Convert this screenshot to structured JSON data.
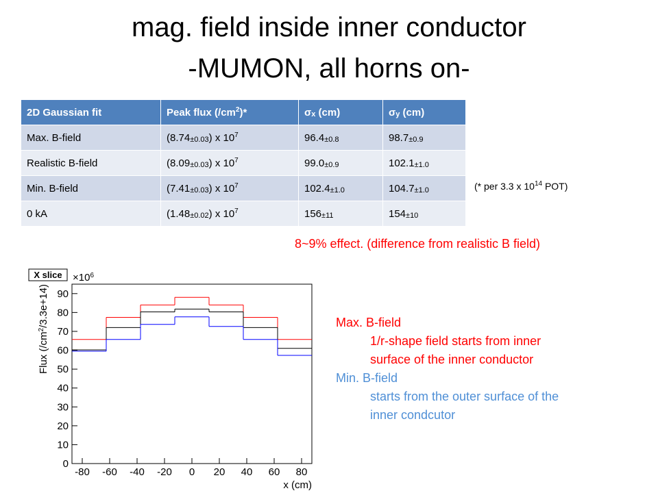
{
  "title": [
    "mag. field inside inner conductor",
    "-MUMON, all horns on-"
  ],
  "table": {
    "header": [
      "2D Gaussian  fit",
      [
        "Peak flux (/cm",
        {
          "sup": "2"
        },
        ")*"
      ],
      [
        "σ",
        {
          "sub": "x"
        },
        " (cm)"
      ],
      [
        "σ",
        {
          "sub": "y"
        },
        " (cm)"
      ]
    ],
    "rows": [
      [
        "Max. B-field",
        [
          "(8.74",
          {
            "sub": "±0.03"
          },
          ") x 10",
          {
            "sup": "7"
          }
        ],
        [
          "96.4",
          {
            "sub": "±0.8"
          }
        ],
        [
          "98.7",
          {
            "sub": "±0.9"
          }
        ]
      ],
      [
        "Realistic B-field",
        [
          "(8.09",
          {
            "sub": "±0.03"
          },
          ") x 10",
          {
            "sup": "7"
          }
        ],
        [
          "99.0",
          {
            "sub": "±0.9"
          }
        ],
        [
          "102.1",
          {
            "sub": "±1.0"
          }
        ]
      ],
      [
        "Min. B-field",
        [
          "(7.41",
          {
            "sub": "±0.03"
          },
          ") x 10",
          {
            "sup": "7"
          }
        ],
        [
          "102.4",
          {
            "sub": "±1.0"
          }
        ],
        [
          "104.7",
          {
            "sub": "±1.0"
          }
        ]
      ],
      [
        "0 kA",
        [
          "(1.48",
          {
            "sub": "±0.02"
          },
          ") x 10",
          {
            "sup": "7"
          }
        ],
        [
          "156",
          {
            "sub": "±11"
          }
        ],
        [
          "154",
          {
            "sub": "±10"
          }
        ]
      ]
    ]
  },
  "note": [
    "(* per 3.3 x 10",
    {
      "sup": "14"
    },
    " POT)"
  ],
  "effect": "8~9% effect. (difference from realistic B field)",
  "chart_data": {
    "type": "histogram",
    "panel_label": "X slice",
    "y_multiplier": [
      "×10",
      {
        "sup": "6"
      }
    ],
    "xlabel": "x (cm)",
    "ylabel": [
      "Flux (/cm",
      {
        "sup": "2"
      },
      "/3.3e+14)"
    ],
    "bins": [
      -87.5,
      -62.5,
      -37.5,
      -12.5,
      12.5,
      37.5,
      62.5,
      87.5
    ],
    "series": [
      {
        "color": "#ff0000",
        "values": [
          65.7,
          77.4,
          84,
          88,
          84,
          77.4,
          65.7
        ]
      },
      {
        "color": "#000000",
        "values": [
          60.2,
          72,
          80.3,
          81.8,
          80.3,
          72,
          61
        ]
      },
      {
        "color": "#0000ff",
        "values": [
          59.5,
          65.7,
          73.7,
          77.7,
          72.6,
          65.7,
          57.3
        ]
      }
    ],
    "xlim": [
      -87.5,
      87.5
    ],
    "ylim": [
      0,
      95
    ],
    "xticks": [
      -80,
      -60,
      -40,
      -20,
      0,
      20,
      40,
      60,
      80
    ],
    "yticks": [
      0,
      10,
      20,
      30,
      40,
      50,
      60,
      70,
      80,
      90
    ]
  },
  "annotations": {
    "max": {
      "label": "Max. B-field",
      "lines": [
        "1/r-shape field starts from inner",
        "surface of the inner conductor"
      ],
      "color": "#ff0000"
    },
    "min": {
      "label": "Min. B-field",
      "lines": [
        "starts from the outer surface of the",
        "inner condcutor"
      ],
      "color": "#4f8fd6"
    }
  }
}
